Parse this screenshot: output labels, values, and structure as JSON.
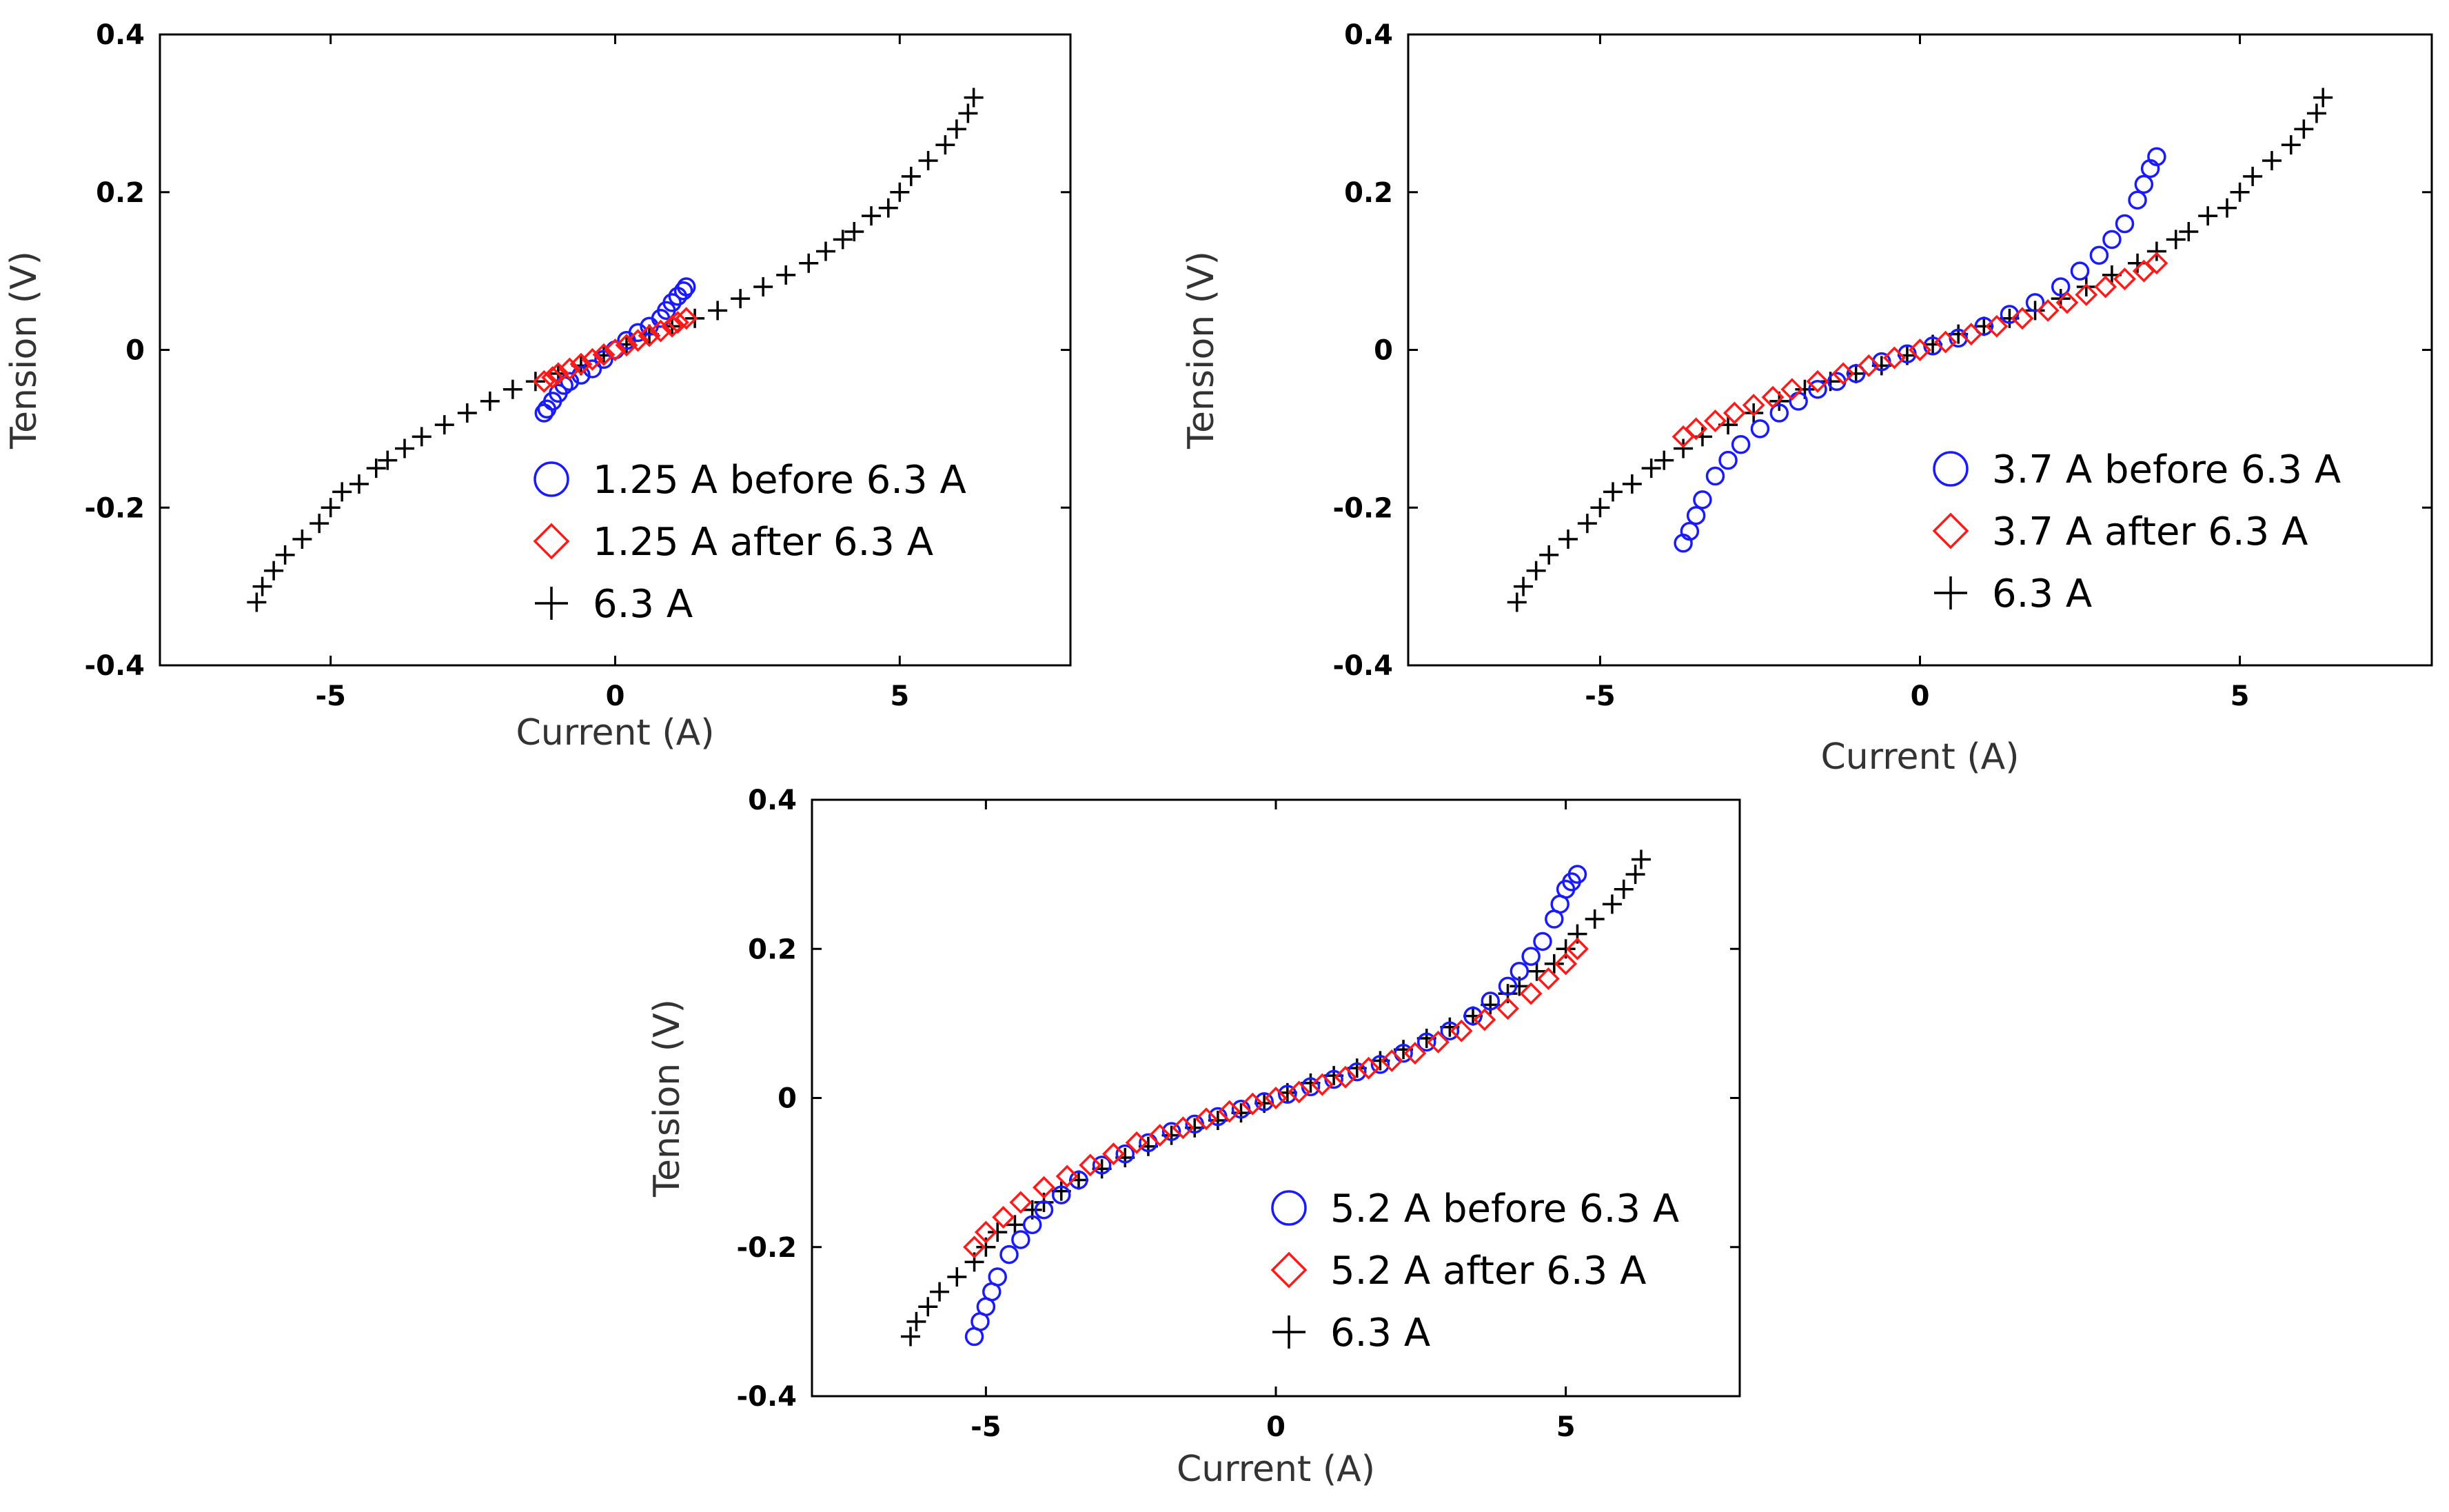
{
  "chart_data": [
    {
      "type": "scatter",
      "title": "",
      "xlabel": "Current (A)",
      "ylabel": "Tension (V)",
      "xlim": [
        -8,
        8
      ],
      "ylim": [
        -0.4,
        0.4
      ],
      "xticks": [
        -5,
        0,
        5
      ],
      "yticks": [
        0.4,
        0.2,
        0,
        -0.2,
        -0.4
      ],
      "xtick_labels": [
        "-5",
        "0",
        "5"
      ],
      "ytick_labels": [
        "0.4",
        "0.2",
        "0",
        "-0.2",
        "-0.4"
      ],
      "legend_position": "lower-right",
      "series": [
        {
          "name": "1.25 A before 6.3 A",
          "marker": "circle",
          "color": "#1a1aff",
          "x": [
            -1.25,
            -1.2,
            -1.1,
            -1.0,
            -0.9,
            -0.8,
            -0.6,
            -0.4,
            -0.2,
            0,
            0.2,
            0.4,
            0.6,
            0.8,
            0.9,
            1.0,
            1.1,
            1.2,
            1.25
          ],
          "y": [
            -0.08,
            -0.075,
            -0.065,
            -0.055,
            -0.045,
            -0.04,
            -0.032,
            -0.024,
            -0.012,
            0.0,
            0.012,
            0.022,
            0.03,
            0.04,
            0.05,
            0.06,
            0.068,
            0.075,
            0.08
          ]
        },
        {
          "name": "1.25 A after 6.3 A",
          "marker": "diamond",
          "color": "#ff1a1a",
          "x": [
            -1.25,
            -1.1,
            -1.0,
            -0.8,
            -0.6,
            -0.4,
            -0.2,
            0,
            0.2,
            0.4,
            0.6,
            0.8,
            1.0,
            1.1,
            1.25
          ],
          "y": [
            -0.04,
            -0.035,
            -0.03,
            -0.024,
            -0.018,
            -0.012,
            -0.006,
            0.0,
            0.006,
            0.012,
            0.018,
            0.024,
            0.03,
            0.035,
            0.04
          ]
        },
        {
          "name": "6.3 A",
          "marker": "plus",
          "color": "#000000",
          "x": [
            -6.3,
            -6.2,
            -6.0,
            -5.8,
            -5.5,
            -5.2,
            -5.0,
            -4.8,
            -4.5,
            -4.2,
            -4.0,
            -3.7,
            -3.4,
            -3.0,
            -2.6,
            -2.2,
            -1.8,
            -1.4,
            -1.0,
            -0.6,
            -0.2,
            0.2,
            0.6,
            1.0,
            1.4,
            1.8,
            2.2,
            2.6,
            3.0,
            3.4,
            3.7,
            4.0,
            4.2,
            4.5,
            4.8,
            5.0,
            5.2,
            5.5,
            5.8,
            6.0,
            6.2,
            6.3
          ],
          "y": [
            -0.32,
            -0.3,
            -0.28,
            -0.26,
            -0.24,
            -0.22,
            -0.2,
            -0.18,
            -0.17,
            -0.15,
            -0.14,
            -0.125,
            -0.11,
            -0.095,
            -0.08,
            -0.065,
            -0.05,
            -0.04,
            -0.03,
            -0.02,
            -0.007,
            0.007,
            0.02,
            0.03,
            0.04,
            0.05,
            0.065,
            0.08,
            0.095,
            0.11,
            0.125,
            0.14,
            0.15,
            0.17,
            0.18,
            0.2,
            0.22,
            0.24,
            0.26,
            0.28,
            0.3,
            0.32
          ]
        }
      ]
    },
    {
      "type": "scatter",
      "title": "",
      "xlabel": "Current (A)",
      "ylabel": "Tension (V)",
      "xlim": [
        -8,
        8
      ],
      "ylim": [
        -0.4,
        0.4
      ],
      "xticks": [
        -5,
        0,
        5
      ],
      "yticks": [
        0.4,
        0.2,
        0,
        -0.2,
        -0.4
      ],
      "xtick_labels": [
        "-5",
        "0",
        "5"
      ],
      "ytick_labels": [
        "0.4",
        "0.2",
        "0",
        "-0.2",
        "-0.4"
      ],
      "legend_position": "lower-right",
      "series": [
        {
          "name": "3.7 A before 6.3 A",
          "marker": "circle",
          "color": "#1a1aff",
          "x": [
            -3.7,
            -3.6,
            -3.5,
            -3.4,
            -3.2,
            -3.0,
            -2.8,
            -2.5,
            -2.2,
            -1.9,
            -1.6,
            -1.3,
            -1.0,
            -0.6,
            -0.2,
            0.2,
            0.6,
            1.0,
            1.4,
            1.8,
            2.2,
            2.5,
            2.8,
            3.0,
            3.2,
            3.4,
            3.5,
            3.6,
            3.7
          ],
          "y": [
            -0.245,
            -0.23,
            -0.21,
            -0.19,
            -0.16,
            -0.14,
            -0.12,
            -0.1,
            -0.08,
            -0.065,
            -0.05,
            -0.04,
            -0.03,
            -0.015,
            -0.005,
            0.005,
            0.015,
            0.03,
            0.045,
            0.06,
            0.08,
            0.1,
            0.12,
            0.14,
            0.16,
            0.19,
            0.21,
            0.23,
            0.245
          ]
        },
        {
          "name": "3.7 A after 6.3 A",
          "marker": "diamond",
          "color": "#ff1a1a",
          "x": [
            -3.7,
            -3.5,
            -3.2,
            -2.9,
            -2.6,
            -2.3,
            -2.0,
            -1.6,
            -1.2,
            -0.8,
            -0.4,
            0,
            0.4,
            0.8,
            1.2,
            1.6,
            2.0,
            2.3,
            2.6,
            2.9,
            3.2,
            3.5,
            3.7
          ],
          "y": [
            -0.11,
            -0.1,
            -0.09,
            -0.08,
            -0.07,
            -0.06,
            -0.05,
            -0.04,
            -0.03,
            -0.02,
            -0.01,
            0.0,
            0.01,
            0.02,
            0.03,
            0.04,
            0.05,
            0.06,
            0.07,
            0.08,
            0.09,
            0.1,
            0.11
          ]
        },
        {
          "name": "6.3 A",
          "marker": "plus",
          "color": "#000000",
          "x": [
            -6.3,
            -6.2,
            -6.0,
            -5.8,
            -5.5,
            -5.2,
            -5.0,
            -4.8,
            -4.5,
            -4.2,
            -4.0,
            -3.7,
            -3.4,
            -3.0,
            -2.6,
            -2.2,
            -1.8,
            -1.4,
            -1.0,
            -0.6,
            -0.2,
            0.2,
            0.6,
            1.0,
            1.4,
            1.8,
            2.2,
            2.6,
            3.0,
            3.4,
            3.7,
            4.0,
            4.2,
            4.5,
            4.8,
            5.0,
            5.2,
            5.5,
            5.8,
            6.0,
            6.2,
            6.3
          ],
          "y": [
            -0.32,
            -0.3,
            -0.28,
            -0.26,
            -0.24,
            -0.22,
            -0.2,
            -0.18,
            -0.17,
            -0.15,
            -0.14,
            -0.125,
            -0.11,
            -0.095,
            -0.08,
            -0.065,
            -0.05,
            -0.04,
            -0.03,
            -0.02,
            -0.007,
            0.007,
            0.02,
            0.03,
            0.04,
            0.05,
            0.065,
            0.08,
            0.095,
            0.11,
            0.125,
            0.14,
            0.15,
            0.17,
            0.18,
            0.2,
            0.22,
            0.24,
            0.26,
            0.28,
            0.3,
            0.32
          ]
        }
      ]
    },
    {
      "type": "scatter",
      "title": "",
      "xlabel": "Current (A)",
      "ylabel": "Tension (V)",
      "xlim": [
        -8,
        8
      ],
      "ylim": [
        -0.4,
        0.4
      ],
      "xticks": [
        -5,
        0,
        5
      ],
      "yticks": [
        0.4,
        0.2,
        0,
        -0.2,
        -0.4
      ],
      "xtick_labels": [
        "-5",
        "0",
        "5"
      ],
      "ytick_labels": [
        "0.4",
        "0.2",
        "0",
        "-0.2",
        "-0.4"
      ],
      "legend_position": "lower-right",
      "series": [
        {
          "name": "5.2 A before 6.3 A",
          "marker": "circle",
          "color": "#1a1aff",
          "x": [
            -5.2,
            -5.1,
            -5.0,
            -4.9,
            -4.8,
            -4.6,
            -4.4,
            -4.2,
            -4.0,
            -3.7,
            -3.4,
            -3.0,
            -2.6,
            -2.2,
            -1.8,
            -1.4,
            -1.0,
            -0.6,
            -0.2,
            0.2,
            0.6,
            1.0,
            1.4,
            1.8,
            2.2,
            2.6,
            3.0,
            3.4,
            3.7,
            4.0,
            4.2,
            4.4,
            4.6,
            4.8,
            4.9,
            5.0,
            5.1,
            5.2
          ],
          "y": [
            -0.32,
            -0.3,
            -0.28,
            -0.26,
            -0.24,
            -0.21,
            -0.19,
            -0.17,
            -0.15,
            -0.13,
            -0.11,
            -0.09,
            -0.075,
            -0.06,
            -0.045,
            -0.035,
            -0.025,
            -0.015,
            -0.005,
            0.005,
            0.015,
            0.025,
            0.035,
            0.045,
            0.06,
            0.075,
            0.09,
            0.11,
            0.13,
            0.15,
            0.17,
            0.19,
            0.21,
            0.24,
            0.26,
            0.28,
            0.29,
            0.3
          ]
        },
        {
          "name": "5.2 A after 6.3 A",
          "marker": "diamond",
          "color": "#ff1a1a",
          "x": [
            -5.2,
            -5.0,
            -4.7,
            -4.4,
            -4.0,
            -3.6,
            -3.2,
            -2.8,
            -2.4,
            -2.0,
            -1.6,
            -1.2,
            -0.8,
            -0.4,
            0,
            0.4,
            0.8,
            1.2,
            1.6,
            2.0,
            2.4,
            2.8,
            3.2,
            3.6,
            4.0,
            4.4,
            4.7,
            5.0,
            5.2
          ],
          "y": [
            -0.2,
            -0.18,
            -0.16,
            -0.14,
            -0.12,
            -0.105,
            -0.09,
            -0.075,
            -0.06,
            -0.05,
            -0.04,
            -0.028,
            -0.018,
            -0.008,
            0.0,
            0.008,
            0.018,
            0.028,
            0.04,
            0.05,
            0.06,
            0.075,
            0.09,
            0.105,
            0.12,
            0.14,
            0.16,
            0.18,
            0.2
          ]
        },
        {
          "name": "6.3 A",
          "marker": "plus",
          "color": "#000000",
          "x": [
            -6.3,
            -6.2,
            -6.0,
            -5.8,
            -5.5,
            -5.2,
            -5.0,
            -4.8,
            -4.5,
            -4.2,
            -4.0,
            -3.7,
            -3.4,
            -3.0,
            -2.6,
            -2.2,
            -1.8,
            -1.4,
            -1.0,
            -0.6,
            -0.2,
            0.2,
            0.6,
            1.0,
            1.4,
            1.8,
            2.2,
            2.6,
            3.0,
            3.4,
            3.7,
            4.0,
            4.2,
            4.5,
            4.8,
            5.0,
            5.2,
            5.5,
            5.8,
            6.0,
            6.2,
            6.3
          ],
          "y": [
            -0.32,
            -0.3,
            -0.28,
            -0.26,
            -0.24,
            -0.22,
            -0.2,
            -0.18,
            -0.17,
            -0.15,
            -0.14,
            -0.125,
            -0.11,
            -0.095,
            -0.08,
            -0.065,
            -0.05,
            -0.04,
            -0.03,
            -0.02,
            -0.007,
            0.007,
            0.02,
            0.03,
            0.04,
            0.05,
            0.065,
            0.08,
            0.095,
            0.11,
            0.125,
            0.14,
            0.15,
            0.17,
            0.18,
            0.2,
            0.22,
            0.24,
            0.26,
            0.28,
            0.3,
            0.32
          ]
        }
      ]
    }
  ]
}
